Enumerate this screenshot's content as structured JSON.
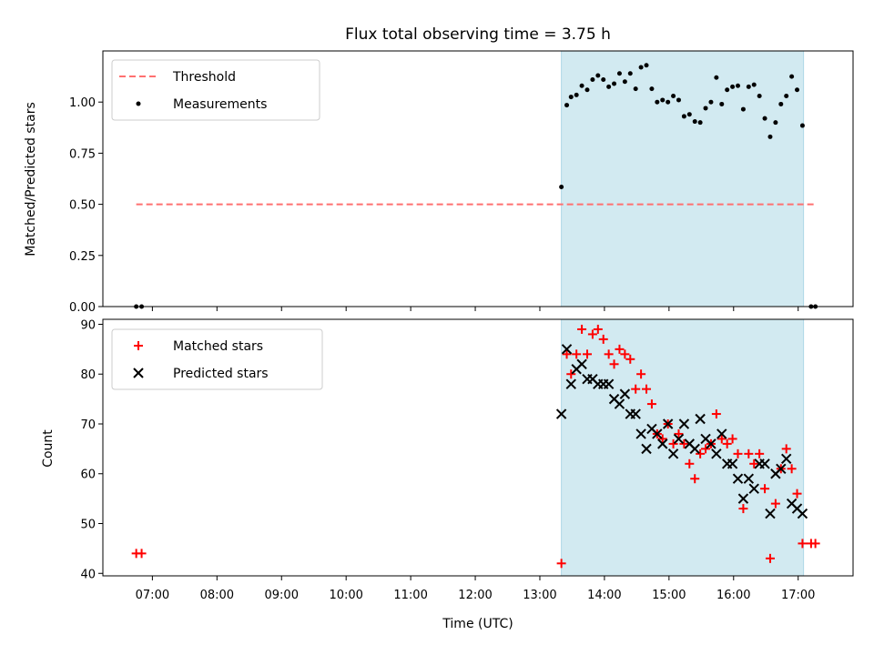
{
  "chart_data": [
    {
      "type": "scatter",
      "panel": "top",
      "title": "Flux total observing time = 3.75 h",
      "ylabel": "Matched/Predicted stars",
      "ylim": [
        0,
        1.25
      ],
      "yticks": [
        0.0,
        0.25,
        0.5,
        0.75,
        1.0
      ],
      "ytick_labels": [
        "0.00",
        "0.25",
        "0.50",
        "0.75",
        "1.00"
      ],
      "xlim": [
        "06:14",
        "17:51"
      ],
      "shaded_span": [
        "13:20",
        "17:05"
      ],
      "shaded_color": "#add8e6",
      "legend_position": "upper left",
      "threshold": {
        "name": "Threshold",
        "color": "#ff7070",
        "style": "dashed",
        "value": 0.5,
        "x": [
          "06:45",
          "17:15"
        ]
      },
      "series": [
        {
          "name": "Measurements",
          "color": "#000000",
          "marker": "dot",
          "points": [
            [
              "06:45",
              0.0
            ],
            [
              "06:50",
              0.0
            ],
            [
              "13:20",
              0.585
            ],
            [
              "13:25",
              0.985
            ],
            [
              "13:29",
              1.025
            ],
            [
              "13:34",
              1.035
            ],
            [
              "13:39",
              1.08
            ],
            [
              "13:44",
              1.06
            ],
            [
              "13:49",
              1.11
            ],
            [
              "13:54",
              1.13
            ],
            [
              "13:59",
              1.11
            ],
            [
              "14:04",
              1.075
            ],
            [
              "14:09",
              1.09
            ],
            [
              "14:14",
              1.14
            ],
            [
              "14:19",
              1.1
            ],
            [
              "14:24",
              1.14
            ],
            [
              "14:29",
              1.065
            ],
            [
              "14:34",
              1.17
            ],
            [
              "14:39",
              1.18
            ],
            [
              "14:44",
              1.065
            ],
            [
              "14:49",
              1.0
            ],
            [
              "14:54",
              1.01
            ],
            [
              "14:59",
              1.0
            ],
            [
              "15:04",
              1.03
            ],
            [
              "15:09",
              1.01
            ],
            [
              "15:14",
              0.93
            ],
            [
              "15:19",
              0.94
            ],
            [
              "15:24",
              0.905
            ],
            [
              "15:29",
              0.9
            ],
            [
              "15:34",
              0.97
            ],
            [
              "15:39",
              1.0
            ],
            [
              "15:44",
              1.12
            ],
            [
              "15:49",
              0.99
            ],
            [
              "15:54",
              1.06
            ],
            [
              "15:59",
              1.075
            ],
            [
              "16:04",
              1.08
            ],
            [
              "16:09",
              0.965
            ],
            [
              "16:14",
              1.075
            ],
            [
              "16:19",
              1.085
            ],
            [
              "16:24",
              1.03
            ],
            [
              "16:29",
              0.92
            ],
            [
              "16:34",
              0.83
            ],
            [
              "16:39",
              0.9
            ],
            [
              "16:44",
              0.99
            ],
            [
              "16:49",
              1.03
            ],
            [
              "16:54",
              1.125
            ],
            [
              "16:59",
              1.06
            ],
            [
              "17:04",
              0.885
            ],
            [
              "17:12",
              0.0
            ],
            [
              "17:16",
              0.0
            ]
          ]
        }
      ]
    },
    {
      "type": "scatter",
      "panel": "bottom",
      "xlabel": "Time (UTC)",
      "ylabel": "Count",
      "ylim": [
        39.5,
        91
      ],
      "yticks": [
        40,
        50,
        60,
        70,
        80,
        90
      ],
      "ytick_labels": [
        "40",
        "50",
        "60",
        "70",
        "80",
        "90"
      ],
      "xlim": [
        "06:14",
        "17:51"
      ],
      "xticks": [
        "07:00",
        "08:00",
        "09:00",
        "10:00",
        "11:00",
        "12:00",
        "13:00",
        "14:00",
        "15:00",
        "16:00",
        "17:00"
      ],
      "shaded_span": [
        "13:20",
        "17:05"
      ],
      "shaded_color": "#add8e6",
      "legend_position": "upper left",
      "series": [
        {
          "name": "Matched stars",
          "color": "#ff0000",
          "marker": "plus",
          "points": [
            [
              "06:45",
              44
            ],
            [
              "06:50",
              44
            ],
            [
              "13:20",
              42
            ],
            [
              "13:25",
              84
            ],
            [
              "13:29",
              80
            ],
            [
              "13:34",
              84
            ],
            [
              "13:39",
              89
            ],
            [
              "13:44",
              84
            ],
            [
              "13:49",
              88
            ],
            [
              "13:54",
              89
            ],
            [
              "13:59",
              87
            ],
            [
              "14:04",
              84
            ],
            [
              "14:09",
              82
            ],
            [
              "14:14",
              85
            ],
            [
              "14:19",
              84
            ],
            [
              "14:24",
              83
            ],
            [
              "14:29",
              77
            ],
            [
              "14:34",
              80
            ],
            [
              "14:39",
              77
            ],
            [
              "14:44",
              74
            ],
            [
              "14:49",
              68
            ],
            [
              "14:54",
              67
            ],
            [
              "14:59",
              70
            ],
            [
              "15:04",
              66
            ],
            [
              "15:09",
              68
            ],
            [
              "15:14",
              66
            ],
            [
              "15:19",
              62
            ],
            [
              "15:24",
              59
            ],
            [
              "15:29",
              64
            ],
            [
              "15:34",
              65
            ],
            [
              "15:39",
              66
            ],
            [
              "15:44",
              72
            ],
            [
              "15:49",
              67
            ],
            [
              "15:54",
              66
            ],
            [
              "15:59",
              67
            ],
            [
              "16:04",
              64
            ],
            [
              "16:09",
              53
            ],
            [
              "16:14",
              64
            ],
            [
              "16:19",
              62
            ],
            [
              "16:24",
              64
            ],
            [
              "16:29",
              57
            ],
            [
              "16:34",
              43
            ],
            [
              "16:39",
              54
            ],
            [
              "16:44",
              61
            ],
            [
              "16:49",
              65
            ],
            [
              "16:54",
              61
            ],
            [
              "16:59",
              56
            ],
            [
              "17:04",
              46
            ],
            [
              "17:12",
              46
            ],
            [
              "17:16",
              46
            ]
          ]
        },
        {
          "name": "Predicted stars",
          "color": "#000000",
          "marker": "x",
          "points": [
            [
              "13:20",
              72
            ],
            [
              "13:25",
              85
            ],
            [
              "13:29",
              78
            ],
            [
              "13:34",
              81
            ],
            [
              "13:39",
              82
            ],
            [
              "13:44",
              79
            ],
            [
              "13:49",
              79
            ],
            [
              "13:54",
              78
            ],
            [
              "13:59",
              78
            ],
            [
              "14:04",
              78
            ],
            [
              "14:09",
              75
            ],
            [
              "14:14",
              74
            ],
            [
              "14:19",
              76
            ],
            [
              "14:24",
              72
            ],
            [
              "14:29",
              72
            ],
            [
              "14:34",
              68
            ],
            [
              "14:39",
              65
            ],
            [
              "14:44",
              69
            ],
            [
              "14:49",
              68
            ],
            [
              "14:54",
              66
            ],
            [
              "14:59",
              70
            ],
            [
              "15:04",
              64
            ],
            [
              "15:09",
              67
            ],
            [
              "15:14",
              70
            ],
            [
              "15:19",
              66
            ],
            [
              "15:24",
              65
            ],
            [
              "15:29",
              71
            ],
            [
              "15:34",
              67
            ],
            [
              "15:39",
              66
            ],
            [
              "15:44",
              64
            ],
            [
              "15:49",
              68
            ],
            [
              "15:54",
              62
            ],
            [
              "15:59",
              62
            ],
            [
              "16:04",
              59
            ],
            [
              "16:09",
              55
            ],
            [
              "16:14",
              59
            ],
            [
              "16:19",
              57
            ],
            [
              "16:24",
              62
            ],
            [
              "16:29",
              62
            ],
            [
              "16:34",
              52
            ],
            [
              "16:39",
              60
            ],
            [
              "16:44",
              61
            ],
            [
              "16:49",
              63
            ],
            [
              "16:54",
              54
            ],
            [
              "16:59",
              53
            ],
            [
              "17:04",
              52
            ]
          ]
        }
      ]
    }
  ]
}
